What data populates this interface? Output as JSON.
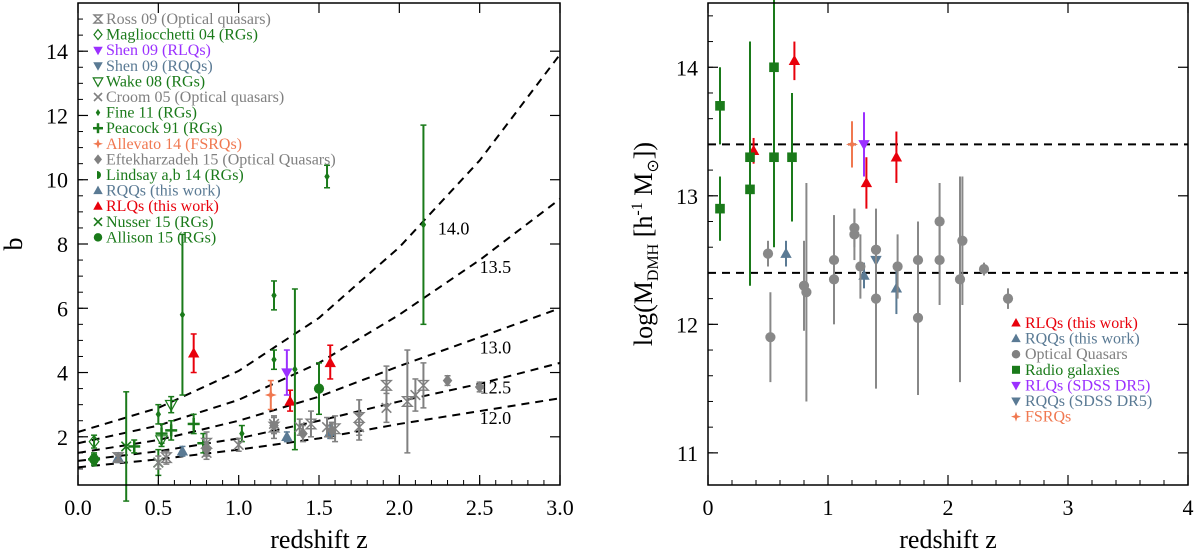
{
  "chart_data": [
    {
      "type": "scatter",
      "xlabel": "redshift z",
      "ylabel": "b",
      "xlim": [
        0,
        3.0
      ],
      "ylim": [
        0.5,
        15.5
      ],
      "xticks": [
        "0.0",
        "0.5",
        "1.0",
        "1.5",
        "2.0",
        "2.5",
        "3.0"
      ],
      "yticks": [
        "2",
        "4",
        "6",
        "8",
        "10",
        "12",
        "14"
      ],
      "curves": [
        {
          "label": "14.0",
          "points": [
            [
              0,
              2.15
            ],
            [
              0.5,
              2.9
            ],
            [
              1.0,
              4.05
            ],
            [
              1.5,
              5.7
            ],
            [
              2.0,
              7.9
            ],
            [
              2.5,
              10.6
            ],
            [
              3.0,
              13.9
            ]
          ]
        },
        {
          "label": "13.5",
          "points": [
            [
              0,
              1.8
            ],
            [
              0.5,
              2.35
            ],
            [
              1.0,
              3.15
            ],
            [
              1.5,
              4.3
            ],
            [
              2.0,
              5.8
            ],
            [
              2.5,
              7.5
            ],
            [
              3.0,
              9.4
            ]
          ]
        },
        {
          "label": "13.0",
          "points": [
            [
              0,
              1.5
            ],
            [
              0.5,
              1.9
            ],
            [
              1.0,
              2.5
            ],
            [
              1.5,
              3.25
            ],
            [
              2.0,
              4.2
            ],
            [
              2.5,
              5.1
            ],
            [
              3.0,
              6.0
            ]
          ]
        },
        {
          "label": "12.5",
          "points": [
            [
              0,
              1.25
            ],
            [
              0.5,
              1.55
            ],
            [
              1.0,
              1.95
            ],
            [
              1.5,
              2.5
            ],
            [
              2.0,
              3.1
            ],
            [
              2.5,
              3.65
            ],
            [
              3.0,
              4.3
            ]
          ]
        },
        {
          "label": "12.0",
          "points": [
            [
              0,
              1.05
            ],
            [
              0.5,
              1.3
            ],
            [
              1.0,
              1.6
            ],
            [
              1.5,
              1.95
            ],
            [
              2.0,
              2.4
            ],
            [
              2.5,
              2.8
            ],
            [
              3.0,
              3.2
            ]
          ]
        }
      ],
      "legend": [
        {
          "label": "Ross 09 (Optical quasars)",
          "color": "#808080",
          "marker": "hourglass"
        },
        {
          "label": "Magliocchetti 04 (RGs)",
          "color": "#1a7a1a",
          "marker": "open-diamond"
        },
        {
          "label": "Shen 09 (RLQs)",
          "color": "#9b30ff",
          "marker": "down-triangle"
        },
        {
          "label": "Shen 09 (RQQs)",
          "color": "#5a7a94",
          "marker": "down-triangle"
        },
        {
          "label": "Wake 08 (RGs)",
          "color": "#1a7a1a",
          "marker": "open-down-triangle"
        },
        {
          "label": "Croom 05 (Optical quasars)",
          "color": "#808080",
          "marker": "cross"
        },
        {
          "label": "Fine 11 (RGs)",
          "color": "#1a7a1a",
          "marker": "small-diamond"
        },
        {
          "label": "Peacock 91 (RGs)",
          "color": "#1a7a1a",
          "marker": "plus"
        },
        {
          "label": "Allevato 14 (FSRQs)",
          "color": "#f07850",
          "marker": "star"
        },
        {
          "label": "Eftekharzadeh 15 (Optical Quasars)",
          "color": "#808080",
          "marker": "diamond"
        },
        {
          "label": "Lindsay a,b 14 (RGs)",
          "color": "#1a7a1a",
          "marker": "half-circle"
        },
        {
          "label": "RQQs (this work)",
          "color": "#5a7a94",
          "marker": "triangle"
        },
        {
          "label": "RLQs (this work)",
          "color": "#e8000b",
          "marker": "triangle"
        },
        {
          "label": "Nusser 15 (RGs)",
          "color": "#1a7a1a",
          "marker": "cross"
        },
        {
          "label": "Allison 15 (RGs)",
          "color": "#1a7a1a",
          "marker": "circle"
        }
      ],
      "series": [
        {
          "name": "RLQs (this work)",
          "color": "#e8000b",
          "marker": "triangle",
          "points": [
            [
              0.72,
              4.6,
              0.6,
              0.6
            ],
            [
              1.32,
              3.1,
              0.35,
              0.3
            ],
            [
              1.57,
              4.3,
              0.55,
              0.5
            ]
          ]
        },
        {
          "name": "RQQs (this work)",
          "color": "#5a7a94",
          "marker": "triangle",
          "points": [
            [
              0.25,
              1.35,
              0.15,
              0.15
            ],
            [
              0.65,
              1.55,
              0.15,
              0.15
            ],
            [
              1.3,
              2.0,
              0.15,
              0.15
            ],
            [
              1.57,
              2.15,
              0.2,
              0.2
            ]
          ]
        },
        {
          "name": "Shen 09 (RLQs)",
          "color": "#9b30ff",
          "marker": "down-triangle",
          "points": [
            [
              1.3,
              4.0,
              0.7,
              0.7
            ]
          ]
        },
        {
          "name": "Allevato 14 (FSRQs)",
          "color": "#f07850",
          "marker": "star",
          "points": [
            [
              1.2,
              3.3,
              0.45,
              0.45
            ]
          ]
        },
        {
          "name": "Allison 15 (RGs)",
          "color": "#1a7a1a",
          "marker": "circle",
          "points": [
            [
              0.1,
              1.3,
              0.2,
              0.2
            ],
            [
              1.5,
              3.5,
              0.8,
              0.8
            ]
          ]
        },
        {
          "name": "Nusser 15 (RGs)",
          "color": "#1a7a1a",
          "marker": "cross",
          "points": [
            [
              0.3,
              1.7,
              1.7,
              1.7
            ],
            [
              0.5,
              1.2,
              0.4,
              0.4
            ]
          ]
        },
        {
          "name": "Fine 11 (RGs)",
          "color": "#1a7a1a",
          "marker": "small-diamond",
          "points": [
            [
              0.5,
              2.7,
              0.3,
              0.3
            ],
            [
              0.65,
              5.8,
              2.5,
              2.5
            ],
            [
              1.02,
              2.1,
              0.25,
              0.25
            ],
            [
              1.22,
              6.4,
              0.45,
              0.45
            ],
            [
              1.22,
              4.4,
              0.3,
              0.3
            ],
            [
              1.35,
              4.1,
              2.5,
              2.5
            ],
            [
              1.55,
              10.1,
              0.35,
              0.35
            ],
            [
              2.15,
              8.6,
              3.1,
              3.1
            ]
          ]
        },
        {
          "name": "Peacock 91 (RGs)",
          "color": "#1a7a1a",
          "marker": "plus",
          "points": [
            [
              0.1,
              1.3,
              0.15,
              0.15
            ],
            [
              0.35,
              1.7,
              0.2,
              0.2
            ],
            [
              0.52,
              2.1,
              0.3,
              0.3
            ],
            [
              0.58,
              2.2,
              0.3,
              0.3
            ],
            [
              0.72,
              2.4,
              0.3,
              0.3
            ],
            [
              0.78,
              1.8,
              0.3,
              0.3
            ]
          ]
        },
        {
          "name": "Wake 08 (RGs)",
          "color": "#1a7a1a",
          "marker": "open-down-triangle",
          "points": [
            [
              0.52,
              1.9,
              0.2,
              0.2
            ],
            [
              0.58,
              3.0,
              0.25,
              0.25
            ]
          ]
        },
        {
          "name": "Magliocchetti 04 (RGs)",
          "color": "#1a7a1a",
          "marker": "open-diamond",
          "points": [
            [
              0.1,
              1.85,
              0.2,
              0.2
            ]
          ]
        },
        {
          "name": "Croom 05 (Optical quasars)",
          "color": "#808080",
          "marker": "cross",
          "points": [
            [
              0.5,
              1.2,
              0.2,
              0.2
            ],
            [
              0.8,
              1.5,
              0.2,
              0.2
            ],
            [
              1.0,
              1.75,
              0.2,
              0.2
            ],
            [
              1.22,
              2.4,
              0.25,
              0.25
            ],
            [
              1.38,
              2.3,
              0.25,
              0.25
            ],
            [
              1.55,
              2.3,
              0.3,
              0.3
            ],
            [
              1.75,
              2.3,
              0.4,
              0.4
            ],
            [
              1.92,
              2.9,
              0.45,
              0.45
            ],
            [
              2.1,
              3.3,
              0.5,
              0.5
            ]
          ]
        },
        {
          "name": "Ross 09 (Optical quasars)",
          "color": "#808080",
          "marker": "hourglass",
          "points": [
            [
              0.25,
              1.35,
              0.1,
              0.1
            ],
            [
              0.55,
              1.35,
              0.2,
              0.2
            ],
            [
              0.8,
              1.8,
              0.35,
              0.35
            ],
            [
              1.22,
              2.3,
              0.35,
              0.35
            ],
            [
              1.45,
              2.4,
              0.4,
              0.4
            ],
            [
              1.6,
              2.25,
              0.4,
              0.4
            ],
            [
              1.75,
              2.6,
              0.55,
              0.55
            ],
            [
              1.92,
              3.6,
              0.6,
              0.6
            ],
            [
              2.05,
              3.1,
              1.6,
              1.6
            ],
            [
              2.15,
              3.6,
              0.7,
              0.7
            ]
          ]
        },
        {
          "name": "Eftekharzadeh 15 (Optical Quasars)",
          "color": "#808080",
          "marker": "diamond",
          "points": [
            [
              0.8,
              1.6,
              0.2,
              0.2
            ],
            [
              1.22,
              2.35,
              0.25,
              0.25
            ],
            [
              1.4,
              2.1,
              0.25,
              0.25
            ],
            [
              1.58,
              2.2,
              0.25,
              0.25
            ],
            [
              2.3,
              3.75,
              0.15,
              0.15
            ],
            [
              2.5,
              3.55,
              0.15,
              0.15
            ]
          ]
        }
      ]
    },
    {
      "type": "scatter",
      "xlabel": "redshift z",
      "ylabel": "log(M_DMH [h^-1 M_sun])",
      "ylabel_main": "log(M",
      "ylabel_sub": "DMH",
      "ylabel_units": "[h",
      "ylabel_exp": "-1",
      "ylabel_units2": " M",
      "ylabel_close": "])",
      "xlim": [
        0,
        4
      ],
      "ylim": [
        10.75,
        14.5
      ],
      "xticks": [
        "0",
        "1",
        "2",
        "3",
        "4"
      ],
      "yticks": [
        "11",
        "12",
        "13",
        "14"
      ],
      "hlines": [
        13.4,
        12.4
      ],
      "legend": [
        {
          "label": "RLQs (this work)",
          "color": "#e8000b",
          "marker": "triangle"
        },
        {
          "label": "RQQs (this work)",
          "color": "#5a7a94",
          "marker": "triangle"
        },
        {
          "label": "Optical Quasars",
          "color": "#808080",
          "marker": "circle"
        },
        {
          "label": "Radio galaxies",
          "color": "#1a7a1a",
          "marker": "square"
        },
        {
          "label": "RLQs (SDSS DR5)",
          "color": "#9b30ff",
          "marker": "down-triangle"
        },
        {
          "label": "RQQs (SDSS DR5)",
          "color": "#5a7a94",
          "marker": "down-triangle"
        },
        {
          "label": "FSRQs",
          "color": "#f07850",
          "marker": "star"
        }
      ],
      "series": [
        {
          "name": "RLQs (this work)",
          "color": "#e8000b",
          "marker": "triangle",
          "points": [
            [
              0.38,
              13.35,
              0.1,
              0.1
            ],
            [
              0.72,
              14.05,
              0.15,
              0.15
            ],
            [
              1.32,
              13.1,
              0.2,
              0.2
            ],
            [
              1.57,
              13.3,
              0.2,
              0.2
            ]
          ]
        },
        {
          "name": "RQQs (this work)",
          "color": "#5a7a94",
          "marker": "triangle",
          "points": [
            [
              0.65,
              12.55,
              0.1,
              0.1
            ],
            [
              1.3,
              12.38,
              0.1,
              0.1
            ],
            [
              1.57,
              12.28,
              0.2,
              0.2
            ]
          ]
        },
        {
          "name": "RLQs (SDSS DR5)",
          "color": "#9b30ff",
          "marker": "down-triangle",
          "points": [
            [
              1.3,
              13.4,
              0.25,
              0.25
            ]
          ]
        },
        {
          "name": "RQQs (SDSS DR5)",
          "color": "#5a7a94",
          "marker": "down-triangle",
          "points": [
            [
              1.4,
              12.5,
              0.2,
              0.2
            ]
          ]
        },
        {
          "name": "FSRQs",
          "color": "#f07850",
          "marker": "star",
          "points": [
            [
              1.2,
              13.4,
              0.18,
              0.18
            ]
          ]
        },
        {
          "name": "Radio galaxies",
          "color": "#1a7a1a",
          "marker": "square",
          "points": [
            [
              0.1,
              13.7,
              0.3,
              0.3
            ],
            [
              0.1,
              12.9,
              0.25,
              0.25
            ],
            [
              0.35,
              13.3,
              0.9,
              1.0
            ],
            [
              0.35,
              13.05,
              0.3,
              0.3
            ],
            [
              0.55,
              14.0,
              0.6,
              0.6
            ],
            [
              0.55,
              13.3,
              0.7,
              0.7
            ],
            [
              0.7,
              13.3,
              0.5,
              0.5
            ]
          ]
        },
        {
          "name": "Optical Quasars",
          "color": "#808080",
          "marker": "circle",
          "points": [
            [
              0.5,
              12.55,
              0.1,
              0.1
            ],
            [
              0.52,
              11.9,
              0.35,
              0.35
            ],
            [
              0.8,
              12.3,
              0.35,
              0.35
            ],
            [
              0.82,
              12.25,
              0.85,
              0.85
            ],
            [
              1.05,
              12.5,
              0.35,
              0.35
            ],
            [
              1.05,
              12.35,
              0.35,
              0.35
            ],
            [
              1.22,
              12.75,
              0.15,
              0.15
            ],
            [
              1.22,
              12.7,
              0.2,
              0.2
            ],
            [
              1.27,
              12.45,
              0.25,
              0.25
            ],
            [
              1.4,
              12.58,
              0.3,
              0.3
            ],
            [
              1.4,
              12.2,
              0.7,
              0.7
            ],
            [
              1.58,
              12.45,
              0.25,
              0.25
            ],
            [
              1.75,
              12.5,
              0.3,
              0.3
            ],
            [
              1.75,
              12.05,
              0.6,
              0.6
            ],
            [
              1.93,
              12.8,
              0.3,
              0.3
            ],
            [
              1.93,
              12.5,
              0.35,
              0.35
            ],
            [
              2.1,
              12.35,
              0.8,
              0.8
            ],
            [
              2.12,
              12.65,
              0.5,
              0.5
            ],
            [
              2.3,
              12.43,
              0.05,
              0.05
            ],
            [
              2.5,
              12.2,
              0.08,
              0.08
            ]
          ]
        }
      ]
    }
  ]
}
